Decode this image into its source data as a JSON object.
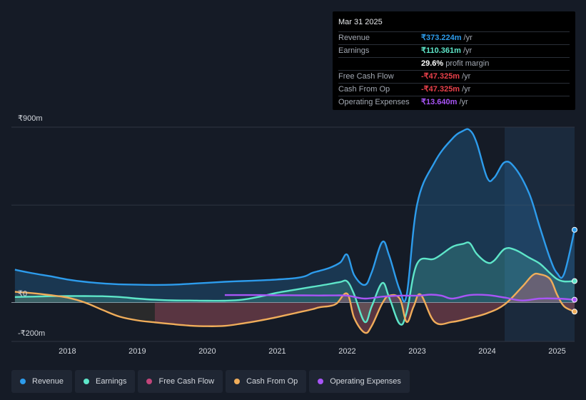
{
  "tooltip": {
    "date": "Mar 31 2025",
    "rows": [
      {
        "label": "Revenue",
        "value": "₹373.224m",
        "unit": "/yr",
        "color": "#2d9cec"
      },
      {
        "label": "Earnings",
        "value": "₹110.361m",
        "unit": "/yr",
        "color": "#5ee6c9"
      },
      {
        "label": "",
        "value": "29.6%",
        "unit": "profit margin",
        "color": "#ffffff"
      },
      {
        "label": "Free Cash Flow",
        "value": "-₹47.325m",
        "unit": "/yr",
        "color": "#e8404a"
      },
      {
        "label": "Cash From Op",
        "value": "-₹47.325m",
        "unit": "/yr",
        "color": "#e8404a"
      },
      {
        "label": "Operating Expenses",
        "value": "₹13.640m",
        "unit": "/yr",
        "color": "#a855f7"
      }
    ]
  },
  "legend": [
    {
      "label": "Revenue",
      "color": "#2d9cec"
    },
    {
      "label": "Earnings",
      "color": "#5ee6c9"
    },
    {
      "label": "Free Cash Flow",
      "color": "#c2457a"
    },
    {
      "label": "Cash From Op",
      "color": "#f0ad5a"
    },
    {
      "label": "Operating Expenses",
      "color": "#a855f7"
    }
  ],
  "chart_data": {
    "type": "line",
    "ylim": [
      -200,
      900
    ],
    "y_tick_labels": [
      {
        "value": 900,
        "label": "₹900m"
      },
      {
        "value": 0,
        "label": "₹0"
      },
      {
        "value": -200,
        "label": "-₹200m"
      }
    ],
    "xlim": [
      2017.2,
      2025.25
    ],
    "x_tick_labels": [
      "2018",
      "2019",
      "2020",
      "2021",
      "2022",
      "2023",
      "2024",
      "2025"
    ],
    "forecast_start": 2024.25,
    "series": [
      {
        "name": "Revenue",
        "color": "#2d9cec",
        "x": [
          2017.25,
          2017.5,
          2017.75,
          2018,
          2018.25,
          2018.5,
          2018.75,
          2019,
          2019.25,
          2019.5,
          2019.75,
          2020,
          2020.25,
          2020.5,
          2020.75,
          2021,
          2021.25,
          2021.4,
          2021.5,
          2021.6,
          2021.75,
          2021.9,
          2022,
          2022.1,
          2022.25,
          2022.35,
          2022.5,
          2022.6,
          2022.75,
          2022.85,
          2023,
          2023.25,
          2023.5,
          2023.65,
          2023.75,
          2023.85,
          2024,
          2024.1,
          2024.25,
          2024.4,
          2024.6,
          2024.75,
          2024.9,
          2025,
          2025.1,
          2025.25
        ],
        "y": [
          168,
          150,
          135,
          118,
          106,
          98,
          93,
          91,
          90,
          91,
          96,
          101,
          106,
          110,
          113,
          118,
          125,
          135,
          152,
          162,
          178,
          205,
          245,
          140,
          90,
          155,
          310,
          240,
          65,
          40,
          505,
          720,
          840,
          880,
          885,
          820,
          640,
          640,
          720,
          690,
          560,
          390,
          225,
          150,
          146,
          373
        ]
      },
      {
        "name": "Earnings",
        "color": "#5ee6c9",
        "x": [
          2017.25,
          2017.5,
          2017.75,
          2018,
          2018.25,
          2018.5,
          2018.75,
          2019,
          2019.25,
          2019.5,
          2019.75,
          2020,
          2020.25,
          2020.5,
          2020.75,
          2021,
          2021.25,
          2021.5,
          2021.75,
          2021.9,
          2022,
          2022.1,
          2022.25,
          2022.35,
          2022.5,
          2022.6,
          2022.75,
          2022.85,
          2023,
          2023.25,
          2023.5,
          2023.65,
          2023.75,
          2023.85,
          2024,
          2024.1,
          2024.25,
          2024.4,
          2024.6,
          2024.75,
          2024.9,
          2025,
          2025.1,
          2025.25
        ],
        "y": [
          28,
          30,
          32,
          33,
          33,
          32,
          28,
          20,
          14,
          11,
          10,
          9,
          9,
          14,
          30,
          50,
          65,
          80,
          95,
          105,
          108,
          40,
          -100,
          -20,
          100,
          25,
          -110,
          -50,
          200,
          225,
          285,
          300,
          305,
          250,
          205,
          215,
          275,
          270,
          230,
          200,
          150,
          120,
          108,
          110
        ]
      },
      {
        "name": "Operating Expenses",
        "color": "#a855f7",
        "x": [
          2020.25,
          2020.5,
          2020.75,
          2021,
          2021.25,
          2021.5,
          2021.75,
          2022,
          2022.25,
          2022.5,
          2022.75,
          2023,
          2023.2,
          2023.35,
          2023.5,
          2023.75,
          2024,
          2024.25,
          2024.5,
          2024.75,
          2025,
          2025.25
        ],
        "y": [
          38,
          38,
          38,
          37,
          37,
          36,
          36,
          35,
          20,
          30,
          35,
          35,
          40,
          35,
          20,
          38,
          38,
          25,
          10,
          20,
          20,
          14
        ]
      },
      {
        "name": "Cash From Op",
        "color": "#f0ad5a",
        "x": [
          2017.25,
          2017.5,
          2017.75,
          2018,
          2018.25,
          2018.5,
          2018.75,
          2019,
          2019.25,
          2019.5,
          2019.75,
          2020,
          2020.25,
          2020.5,
          2020.75,
          2021,
          2021.25,
          2021.5,
          2021.6,
          2021.75,
          2021.85,
          2022,
          2022.1,
          2022.25,
          2022.35,
          2022.5,
          2022.6,
          2022.75,
          2022.85,
          2022.95,
          2023.05,
          2023.25,
          2023.5,
          2023.75,
          2024,
          2024.25,
          2024.5,
          2024.65,
          2024.75,
          2024.9,
          2025,
          2025.1,
          2025.25
        ],
        "y": [
          55,
          48,
          38,
          25,
          0,
          -38,
          -73,
          -92,
          -102,
          -111,
          -119,
          -122,
          -120,
          -108,
          -93,
          -75,
          -55,
          -35,
          -25,
          -18,
          -5,
          45,
          -80,
          -155,
          -120,
          -5,
          35,
          20,
          -100,
          -20,
          40,
          -100,
          -100,
          -80,
          -55,
          -10,
          80,
          140,
          145,
          120,
          40,
          -20,
          -47
        ]
      },
      {
        "name": "Free Cash Flow",
        "color": "#c2457a",
        "x": [
          2019.25,
          2019.5,
          2019.75,
          2020,
          2020.25,
          2020.5,
          2020.75,
          2021,
          2021.25,
          2021.5,
          2021.6,
          2021.75,
          2021.85,
          2022,
          2022.1,
          2022.25,
          2022.35,
          2022.5,
          2022.6,
          2022.75,
          2022.85,
          2022.95,
          2023.05,
          2023.25,
          2023.5,
          2023.75,
          2024,
          2024.25,
          2024.5,
          2024.65,
          2024.75,
          2024.9,
          2025,
          2025.1,
          2025.25
        ],
        "y": [
          -102,
          -111,
          -119,
          -122,
          -120,
          -108,
          -93,
          -75,
          -55,
          -35,
          -25,
          -18,
          -5,
          45,
          -80,
          -155,
          -120,
          -5,
          35,
          20,
          -100,
          -20,
          40,
          -100,
          -100,
          -80,
          -55,
          -10,
          80,
          140,
          145,
          120,
          40,
          -20,
          -47
        ]
      }
    ]
  }
}
